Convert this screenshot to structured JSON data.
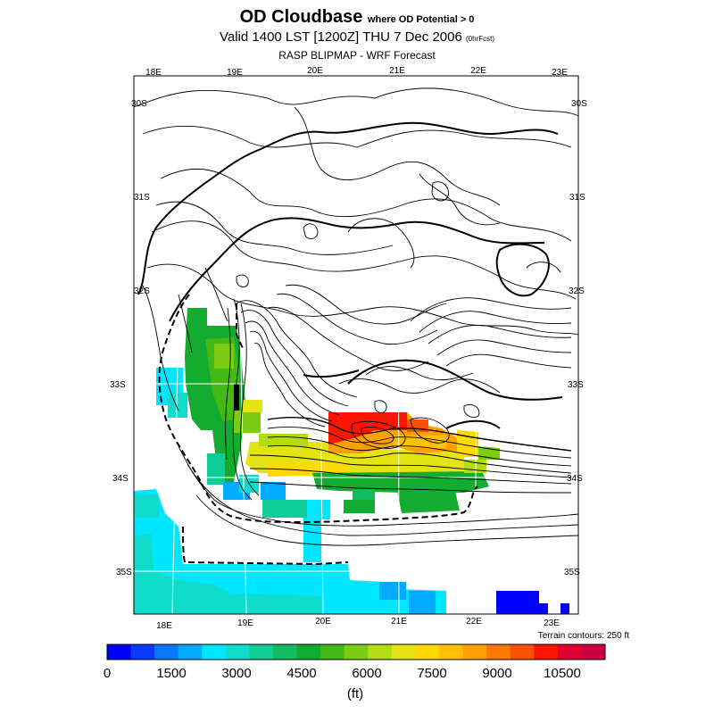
{
  "header": {
    "title": "OD Cloudbase",
    "title_suffix": "where OD Potential > 0",
    "valid": "Valid 1400 LST [1200Z] THU 7 Dec 2006",
    "valid_suffix": "(0hrFcst)",
    "source": "RASP BLIPMAP - WRF Forecast"
  },
  "map": {
    "lon_top": [
      "18E",
      "19E",
      "20E",
      "21E",
      "22E",
      "23E"
    ],
    "lon_bottom": [
      "18E",
      "19E",
      "20E",
      "21E",
      "22E",
      "23E"
    ],
    "lat_left": [
      "30S",
      "31S",
      "32S",
      "33S",
      "34S",
      "35S"
    ],
    "lat_right": [
      "30S",
      "31S",
      "32S",
      "33S",
      "34S",
      "35S"
    ],
    "terrain_note": "Terrain contours: 250 ft"
  },
  "colorbar": {
    "colors": [
      "#0000ff",
      "#0a3cff",
      "#0a78ff",
      "#00aaff",
      "#00e6ff",
      "#10dccc",
      "#10cc99",
      "#14bc60",
      "#14ac30",
      "#44b814",
      "#7ccc14",
      "#b4dc14",
      "#e4e414",
      "#ffd800",
      "#ffc000",
      "#ffa000",
      "#ff7800",
      "#ff5000",
      "#ff1400",
      "#e00030",
      "#cc0040"
    ],
    "tick_labels": [
      "0",
      "1500",
      "3000",
      "4500",
      "6000",
      "7500",
      "9000",
      "10500"
    ],
    "unit": "(ft)"
  }
}
